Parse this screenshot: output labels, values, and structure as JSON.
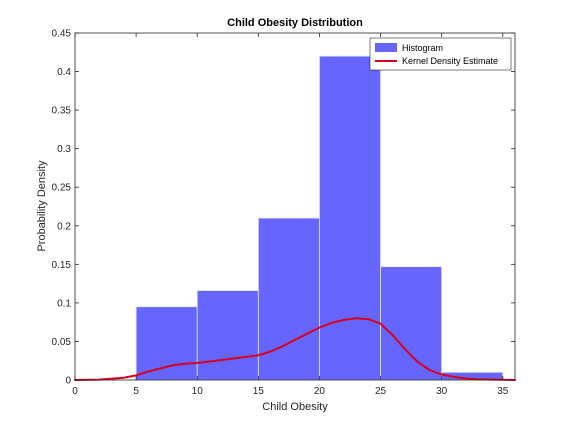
{
  "chart_data": {
    "type": "bar",
    "title": "Child Obesity Distribution",
    "xlabel": "Child Obesity",
    "ylabel": "Probability Density",
    "xlim": [
      0,
      36
    ],
    "ylim": [
      0,
      0.45
    ],
    "xticks": [
      0,
      5,
      10,
      15,
      20,
      25,
      30,
      35
    ],
    "xtick_labels": [
      "0",
      "5",
      "10",
      "15",
      "20",
      "25",
      "30",
      "35"
    ],
    "yticks": [
      0,
      0.05,
      0.1,
      0.15,
      0.2,
      0.25,
      0.3,
      0.35,
      0.4,
      0.45
    ],
    "ytick_labels": [
      "0",
      "0.05",
      "0.1",
      "0.15",
      "0.2",
      "0.25",
      "0.3",
      "0.35",
      "0.4",
      "0.45"
    ],
    "grid": false,
    "legend_position": "top-right",
    "histogram": {
      "name": "Histogram",
      "color": "#6666ff",
      "bin_edges": [
        5,
        10,
        15,
        20,
        25,
        30,
        35
      ],
      "values": [
        0.095,
        0.116,
        0.21,
        0.42,
        0.147,
        0.01
      ]
    },
    "kde": {
      "name": "Kernel Density Estimate",
      "color": "#d9001f",
      "x": [
        0,
        2,
        4,
        5,
        6,
        7,
        8,
        9,
        10,
        12,
        14,
        15,
        16,
        17,
        18,
        19,
        20,
        21,
        22,
        23,
        24,
        25,
        26,
        27,
        28,
        29,
        30,
        31,
        32,
        33,
        34,
        35,
        36
      ],
      "y": [
        0.0,
        0.0005,
        0.003,
        0.006,
        0.011,
        0.015,
        0.019,
        0.021,
        0.022,
        0.026,
        0.03,
        0.032,
        0.037,
        0.044,
        0.052,
        0.06,
        0.068,
        0.074,
        0.078,
        0.08,
        0.079,
        0.073,
        0.058,
        0.04,
        0.024,
        0.013,
        0.007,
        0.004,
        0.002,
        0.001,
        0.0005,
        0.0002,
        0.0
      ]
    }
  }
}
